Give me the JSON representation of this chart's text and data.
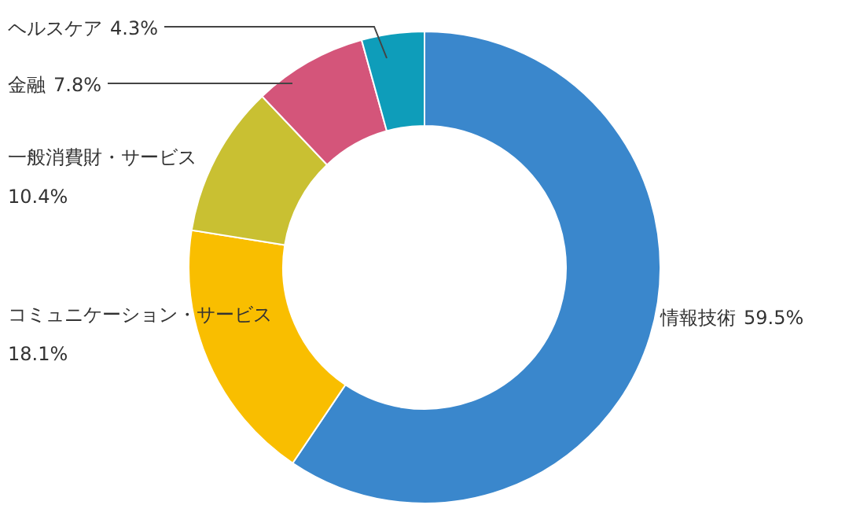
{
  "chart_data": {
    "type": "donut",
    "categories": [
      "情報技術",
      "コミュニケーション・サービス",
      "一般消費財・サービス",
      "金融",
      "ヘルスケア"
    ],
    "values": [
      59.5,
      18.1,
      10.4,
      7.8,
      4.3
    ],
    "colors": [
      "#3a87cc",
      "#f9be00",
      "#c9c032",
      "#d4557a",
      "#0e9dba"
    ],
    "value_labels": [
      "59.5%",
      "18.1%",
      "10.4%",
      "7.8%",
      "4.3%"
    ]
  }
}
